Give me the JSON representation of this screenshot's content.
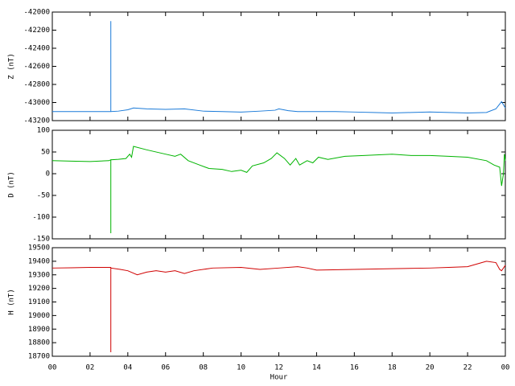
{
  "chart_data": [
    {
      "type": "line",
      "ylabel": "Z (nT)",
      "color": "#1a7ad8",
      "ylim": [
        -43200,
        -42000
      ],
      "yticks": [
        -42000,
        -42200,
        -42400,
        -42600,
        -42800,
        -43000,
        -43200
      ],
      "x": [
        0,
        1,
        2,
        3.0,
        3.1,
        3.1,
        3.1,
        3.5,
        4.0,
        4.3,
        5,
        6,
        7,
        8,
        9,
        10,
        11,
        11.8,
        12,
        12.5,
        13,
        14,
        15,
        16,
        17,
        18,
        19,
        20,
        21,
        22,
        23,
        23.5,
        23.8,
        24
      ],
      "values": [
        -43100,
        -43100,
        -43100,
        -43100,
        -43100,
        -42100,
        -43100,
        -43095,
        -43080,
        -43060,
        -43070,
        -43075,
        -43070,
        -43095,
        -43100,
        -43105,
        -43095,
        -43085,
        -43070,
        -43090,
        -43100,
        -43100,
        -43100,
        -43105,
        -43110,
        -43115,
        -43110,
        -43105,
        -43110,
        -43115,
        -43110,
        -43070,
        -42990,
        -43060
      ]
    },
    {
      "type": "line",
      "ylabel": "D (nT)",
      "color": "#00b400",
      "ylim": [
        -150,
        100
      ],
      "yticks": [
        -150,
        -100,
        -50,
        0,
        50,
        100
      ],
      "x": [
        0,
        1,
        2,
        3.0,
        3.1,
        3.1,
        3.1,
        3.5,
        3.9,
        4.1,
        4.2,
        4.3,
        5,
        6,
        6.5,
        6.8,
        7.2,
        7.8,
        8.3,
        9,
        9.5,
        10,
        10.3,
        10.6,
        11.2,
        11.6,
        11.9,
        12.3,
        12.6,
        12.9,
        13.1,
        13.5,
        13.8,
        14.1,
        14.6,
        15.5,
        16.5,
        18,
        19,
        20,
        21,
        22,
        23,
        23.4,
        23.7,
        23.8,
        23.9,
        23.95,
        24
      ],
      "values": [
        30,
        29,
        28,
        30,
        32,
        -137,
        32,
        33,
        35,
        45,
        38,
        63,
        55,
        45,
        40,
        45,
        30,
        20,
        12,
        10,
        5,
        8,
        3,
        18,
        25,
        35,
        48,
        35,
        20,
        35,
        20,
        30,
        25,
        38,
        33,
        40,
        42,
        45,
        42,
        42,
        40,
        38,
        30,
        20,
        15,
        -28,
        0,
        45,
        30
      ]
    },
    {
      "type": "line",
      "ylabel": "H (nT)",
      "xlabel": "Hour",
      "color": "#d00000",
      "ylim": [
        18700,
        19500
      ],
      "yticks": [
        18700,
        18800,
        18900,
        19000,
        19100,
        19200,
        19300,
        19400,
        19500
      ],
      "xlim": [
        0,
        24
      ],
      "xticks": [
        {
          "value": 0,
          "label": "00"
        },
        {
          "value": 2,
          "label": "02"
        },
        {
          "value": 4,
          "label": "04"
        },
        {
          "value": 6,
          "label": "06"
        },
        {
          "value": 8,
          "label": "08"
        },
        10,
        12,
        14,
        16,
        18,
        20,
        22,
        {
          "value": 24,
          "label": "00"
        }
      ],
      "x": [
        0,
        1,
        2,
        3.0,
        3.1,
        3.1,
        3.1,
        3.6,
        4,
        4.5,
        5,
        5.5,
        6,
        6.5,
        7,
        7.5,
        8.5,
        10,
        11,
        12,
        13,
        13.5,
        14,
        16,
        18,
        20,
        21,
        22,
        22.5,
        23,
        23.5,
        23.7,
        23.8,
        24
      ],
      "values": [
        19350,
        19352,
        19355,
        19355,
        19355,
        18730,
        19350,
        19340,
        19330,
        19300,
        19320,
        19330,
        19320,
        19330,
        19310,
        19330,
        19350,
        19355,
        19340,
        19350,
        19360,
        19350,
        19335,
        19340,
        19345,
        19350,
        19355,
        19360,
        19380,
        19400,
        19390,
        19340,
        19330,
        19370
      ]
    }
  ]
}
